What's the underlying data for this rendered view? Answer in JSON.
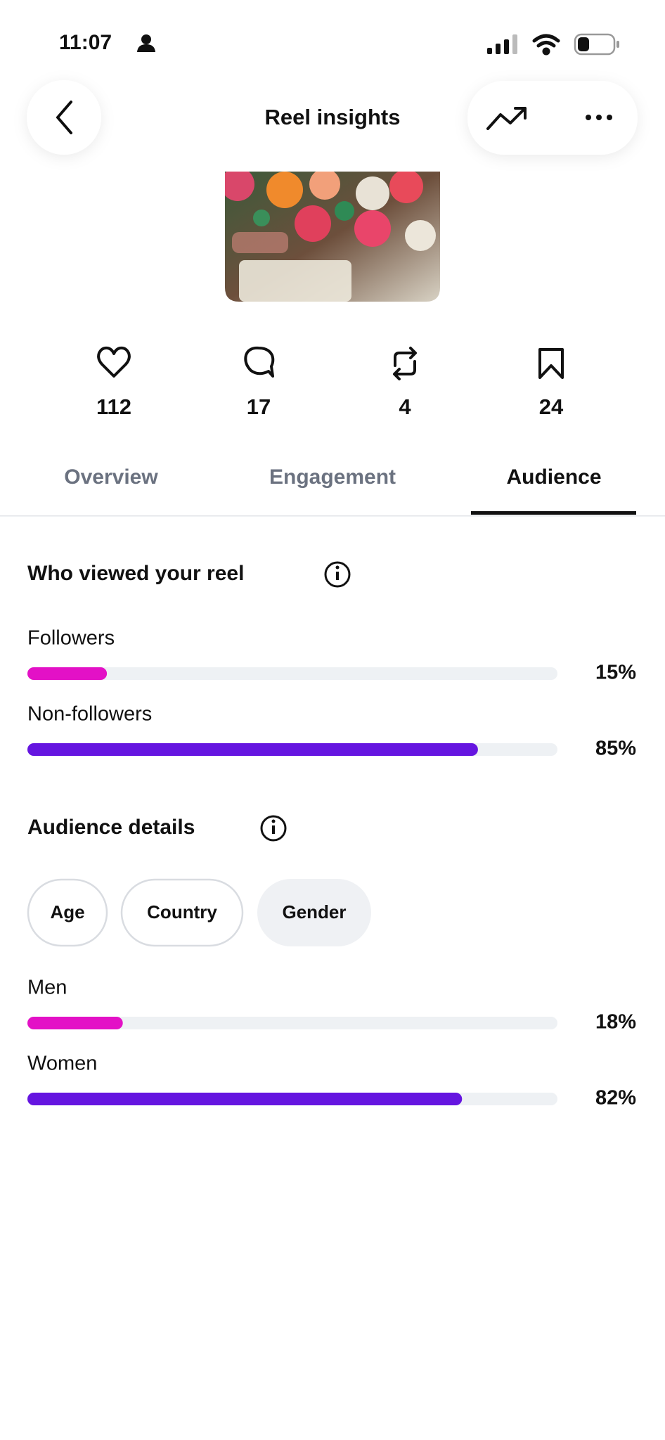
{
  "status_bar": {
    "time": "11:07"
  },
  "header": {
    "title": "Reel insights"
  },
  "stats": [
    112,
    17,
    4,
    24
  ],
  "tabs": [
    "Overview",
    "Engagement",
    "Audience"
  ],
  "viewers": {
    "title": "Who viewed your reel",
    "rows": [
      {
        "label": "Followers",
        "value": 15,
        "value_label": "15%",
        "color": "#e311c6"
      },
      {
        "label": "Non-followers",
        "value": 85,
        "value_label": "85%",
        "color": "#6515e0"
      }
    ]
  },
  "audience_details": {
    "title": "Audience details",
    "filters": [
      "Age",
      "Country",
      "Gender"
    ],
    "rows": [
      {
        "label": "Men",
        "value": 18,
        "value_label": "18%",
        "color": "#e311c6"
      },
      {
        "label": "Women",
        "value": 82,
        "value_label": "82%",
        "color": "#6515e0"
      }
    ]
  }
}
